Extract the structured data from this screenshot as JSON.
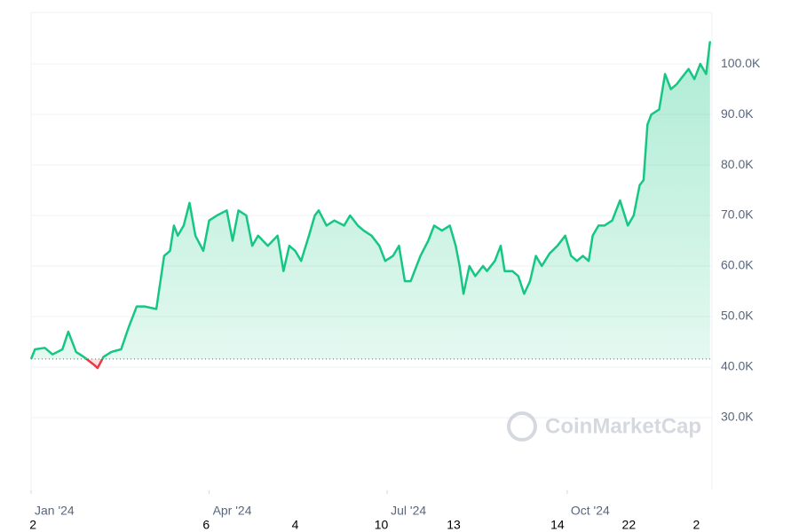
{
  "chart_data": {
    "type": "line",
    "watermark": "CoinMarketCap",
    "color": "#16c784",
    "below_color": "#ea3943",
    "grid": true,
    "xlim": [
      0,
      348
    ],
    "ylim": [
      15600,
      110200
    ],
    "yticks": [
      {
        "value": 30000,
        "label": "30.0K"
      },
      {
        "value": 40000,
        "label": "40.0K"
      },
      {
        "value": 50000,
        "label": "50.0K"
      },
      {
        "value": 60000,
        "label": "60.0K"
      },
      {
        "value": 70000,
        "label": "70.0K"
      },
      {
        "value": 80000,
        "label": "80.0K"
      },
      {
        "value": 90000,
        "label": "90.0K"
      },
      {
        "value": 100000,
        "label": "100.0K"
      }
    ],
    "xticks": [
      {
        "value": 0,
        "label": "Jan '24"
      },
      {
        "value": 91,
        "label": "Apr '24"
      },
      {
        "value": 182,
        "label": "Jul '24"
      },
      {
        "value": 274,
        "label": "Oct '24"
      }
    ],
    "xticks_secondary": [
      {
        "value": 1,
        "label": "2"
      },
      {
        "value": 89.5,
        "label": "6"
      },
      {
        "value": 135,
        "label": "4"
      },
      {
        "value": 179,
        "label": "10"
      },
      {
        "value": 216,
        "label": "13"
      },
      {
        "value": 269,
        "label": "14"
      },
      {
        "value": 305.5,
        "label": "22"
      },
      {
        "value": 340,
        "label": "2"
      }
    ],
    "x": [
      0,
      2,
      7,
      11,
      16,
      19,
      23,
      27,
      32,
      34,
      37,
      41,
      46,
      50,
      54,
      58,
      64,
      68,
      71,
      73,
      75,
      78,
      81,
      84,
      88,
      91,
      95,
      100,
      103,
      106,
      110,
      113,
      116,
      121,
      126,
      129,
      132,
      135,
      138,
      142,
      145,
      147,
      151,
      155,
      160,
      163,
      167,
      170,
      174,
      178,
      181,
      185,
      188,
      191,
      194,
      199,
      203,
      206,
      210,
      214,
      217,
      219,
      221,
      224,
      227,
      231,
      233,
      237,
      240,
      242,
      246,
      249,
      252,
      255,
      258,
      261,
      265,
      269,
      273,
      276,
      279,
      282,
      285,
      287,
      290,
      293,
      297,
      301,
      305,
      308,
      311,
      313,
      315,
      317,
      321,
      324,
      327,
      330,
      332,
      336,
      339,
      342,
      345,
      347
    ],
    "values": [
      41600,
      43500,
      43800,
      42500,
      43500,
      47000,
      43000,
      42000,
      40500,
      39800,
      42000,
      43000,
      43500,
      48000,
      52000,
      52000,
      51500,
      62000,
      63000,
      68000,
      66000,
      68000,
      72500,
      66000,
      63000,
      69000,
      70000,
      71000,
      65000,
      71000,
      70000,
      64000,
      66000,
      64000,
      66000,
      59000,
      64000,
      63000,
      61000,
      66000,
      70000,
      71000,
      68000,
      69000,
      68000,
      70000,
      68000,
      67000,
      66000,
      64000,
      61000,
      62000,
      64000,
      57000,
      57000,
      62000,
      65000,
      68000,
      67000,
      68000,
      64000,
      60000,
      54500,
      60000,
      58000,
      60000,
      59000,
      61000,
      64000,
      59000,
      59000,
      58000,
      54500,
      57000,
      62000,
      60000,
      62500,
      64000,
      66000,
      62000,
      61000,
      62000,
      61000,
      66000,
      68000,
      68000,
      69000,
      73000,
      68000,
      70000,
      76000,
      77000,
      88000,
      90000,
      91000,
      98000,
      95000,
      96000,
      97000,
      99000,
      97000,
      100000,
      98000,
      104500
    ]
  }
}
